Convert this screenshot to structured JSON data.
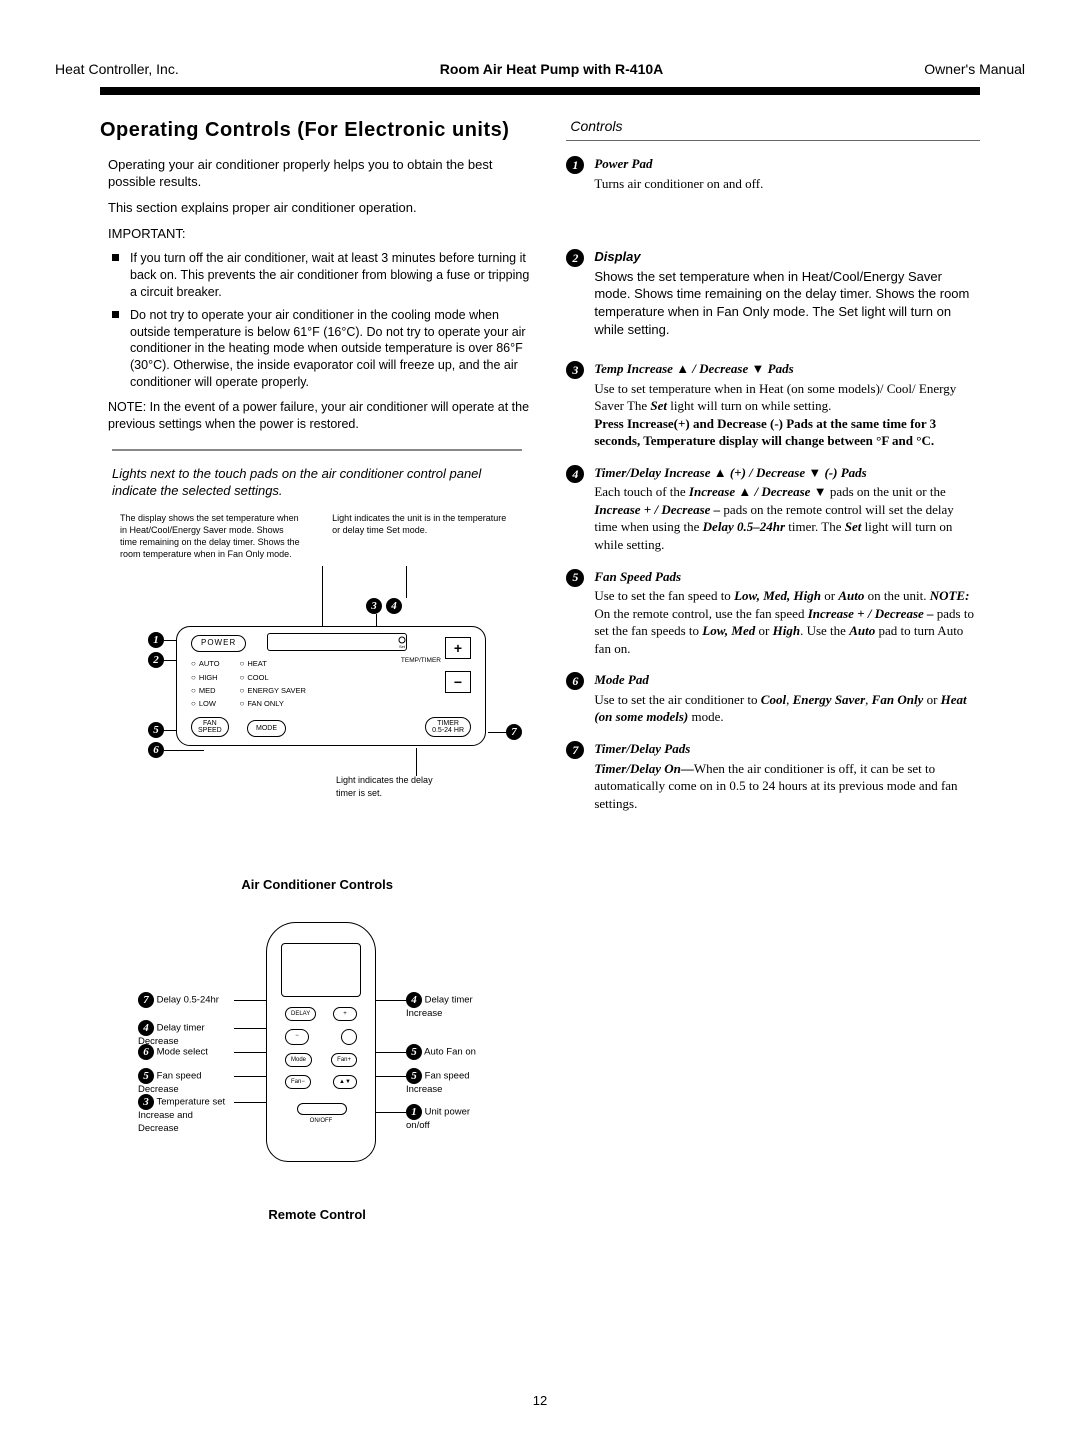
{
  "header": {
    "left": "Heat Controller, Inc.",
    "center": "Room Air Heat Pump with R-410A",
    "right": "Owner's Manual"
  },
  "page_title": "Operating Controls (For Electronic units)",
  "intro": {
    "p1": "Operating your air conditioner properly helps you to obtain the best possible results.",
    "p2": "This section explains proper air conditioner operation.",
    "important_label": "IMPORTANT:",
    "bullet1": "If you turn off the air conditioner, wait at least 3 minutes before turning it back on. This prevents the air conditioner from blowing a fuse or tripping a circuit breaker.",
    "bullet2": "Do not try to operate your air conditioner in the cooling mode when outside temperature is below 61°F (16°C). Do not try to operate your air conditioner in the heating mode when outside temperature is over 86°F (30°C). Otherwise, the inside evaporator coil will freeze up, and the air conditioner will operate properly.",
    "note": "NOTE: In the event of a power failure, your air conditioner will operate at the previous settings when the power is restored."
  },
  "lights_intro": "Lights next to the touch pads on the air conditioner control panel indicate the selected settings.",
  "panel": {
    "cap_left": "The display shows the set temperature when in Heat/Cool/Energy Saver mode. Shows time remaining on the delay timer. Shows the room temperature when in Fan Only mode.",
    "cap_right": "Light indicates the unit is in the temperature or delay time Set mode.",
    "power": "POWER",
    "modes": [
      "AUTO",
      "HEAT",
      "HIGH",
      "COOL",
      "MED",
      "ENERGY SAVER",
      "LOW",
      "FAN ONLY"
    ],
    "fan_speed": "FAN\nSPEED",
    "mode_btn": "MODE",
    "timer_btn": "TIMER\n0.5-24 HR",
    "temp_timer": "TEMP/TIMER",
    "sub_caption": "Light indicates the delay timer is set.",
    "title": "Air Conditioner Controls"
  },
  "remote": {
    "labels_left": [
      {
        "n": "7",
        "t": "Delay 0.5-24hr"
      },
      {
        "n": "4",
        "t": "Delay timer Decrease"
      },
      {
        "n": "6",
        "t": "Mode select"
      },
      {
        "n": "5",
        "t": "Fan speed Decrease"
      },
      {
        "n": "3",
        "t": "Temperature set Increase and Decrease"
      }
    ],
    "labels_right": [
      {
        "n": "4",
        "t": "Delay timer Increase"
      },
      {
        "n": "5",
        "t": "Auto Fan on"
      },
      {
        "n": "5",
        "t": "Fan speed Increase"
      },
      {
        "n": "1",
        "t": "Unit power on/off"
      }
    ],
    "title": "Remote Control"
  },
  "controls_header": "Controls",
  "controls": [
    {
      "n": "1",
      "title": "Power Pad",
      "body_html": "Turns air conditioner on and off."
    },
    {
      "n": "2",
      "title": "Display",
      "body_html": "Shows the set temperature when in Heat/Cool/Energy Saver mode. Shows time remaining on the delay timer. Shows the room temperature when in Fan Only mode. The Set light will turn on while setting."
    },
    {
      "n": "3",
      "title": "Temp Increase ▲ / Decrease ▼ Pads",
      "body_html": "Use to set temperature when in Heat (on some models)/ Cool/ Energy Saver The <b><i>Set</i></b> light will turn on while setting.<br><b>Press Increase(+) and Decrease (-) Pads at the same time for 3 seconds, Temperature display will change between °F and °C.</b>"
    },
    {
      "n": "4",
      "title": "Timer/Delay Increase ▲ (+) / Decrease ▼ (-) Pads",
      "body_html": "Each touch of the <b><i>Increase ▲ / Decrease ▼</i></b> pads on the unit or the <b><i>Increase + / Decrease –</i></b> pads on the remote control will set the delay time when using the <b><i>Delay 0.5–24hr</i></b> timer. The <b><i>Set</i></b> light will turn on while setting."
    },
    {
      "n": "5",
      "title": "Fan Speed Pads",
      "body_html": "Use to set the fan speed to <b><i>Low, Med, High</i></b> or <b><i>Auto</i></b> on the unit. <b><i>NOTE:</i></b> On the remote control, use the fan speed <b><i>Increase + / Decrease –</i></b> pads to set the fan speeds to <b><i>Low, Med</i></b> or <b><i>High</i></b>. Use the <b><i>Auto</i></b> pad to turn Auto fan on."
    },
    {
      "n": "6",
      "title": "Mode Pad",
      "body_html": "Use to set the air conditioner to <b><i>Cool</i></b>, <b><i>Energy Saver</i></b>, <b><i>Fan Only</i></b> or <b><i>Heat (on some models)</i></b> mode."
    },
    {
      "n": "7",
      "title": "Timer/Delay Pads",
      "body_html": "<b><i>Timer/Delay On—</i></b>When the air conditioner is off, it can be set to automatically come on in 0.5 to 24 hours at its previous mode and fan settings."
    }
  ],
  "page_number": "12"
}
